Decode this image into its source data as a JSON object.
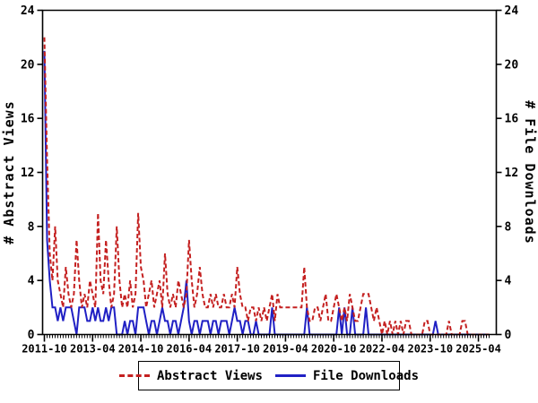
{
  "colors": {
    "abstract_views": "#c42020",
    "file_downloads": "#2020c4",
    "axis": "#000000",
    "background": "#ffffff"
  },
  "chart_data": {
    "type": "line",
    "title": "",
    "start_month": "2011-10",
    "x_tick_labels": [
      "2011-10",
      "2013-04",
      "2014-10",
      "2016-04",
      "2017-10",
      "2019-04",
      "2020-10",
      "2022-04",
      "2023-10",
      "2025-04"
    ],
    "x_tick_month_indices": [
      0,
      18,
      36,
      54,
      72,
      90,
      108,
      126,
      144,
      162
    ],
    "ylabel_left": "# Abstract Views",
    "ylabel_right": "# File Downloads",
    "y_ticks": [
      0,
      4,
      8,
      12,
      16,
      20,
      24
    ],
    "ylim": [
      0,
      24
    ],
    "grid": "off",
    "legend_position": "bottom",
    "series": [
      {
        "name": "Abstract Views",
        "style": "dashed",
        "color": "#c42020",
        "values": [
          22,
          13,
          6,
          4,
          8,
          4,
          3,
          2,
          5,
          3,
          2,
          3,
          7,
          4,
          2,
          3,
          2,
          4,
          3,
          2,
          9,
          4,
          3,
          7,
          4,
          2,
          3,
          8,
          4,
          2,
          3,
          2,
          4,
          2,
          3,
          9,
          5,
          4,
          2,
          3,
          4,
          2,
          3,
          4,
          2,
          6,
          3,
          2,
          3,
          2,
          4,
          3,
          2,
          3,
          7,
          4,
          2,
          3,
          5,
          3,
          2,
          2,
          3,
          2,
          3,
          2,
          2,
          3,
          2,
          2,
          3,
          2,
          5,
          3,
          2,
          2,
          1,
          2,
          2,
          1,
          2,
          1,
          2,
          1,
          2,
          3,
          1,
          3,
          2,
          2,
          2,
          2,
          2,
          2,
          2,
          2,
          2,
          5,
          2,
          1,
          1,
          2,
          2,
          1,
          2,
          3,
          1,
          1,
          2,
          3,
          2,
          1,
          2,
          1,
          3,
          2,
          1,
          1,
          2,
          3,
          3,
          3,
          2,
          1,
          2,
          1,
          0,
          1,
          0,
          1,
          0,
          1,
          0,
          1,
          0,
          1,
          1,
          0,
          0,
          0,
          0,
          0,
          1,
          1,
          0,
          0,
          0,
          0,
          0,
          0,
          0,
          1,
          0,
          0,
          0,
          0,
          1,
          1,
          0,
          0,
          0,
          0,
          0,
          0,
          0,
          0,
          0
        ]
      },
      {
        "name": "File Downloads",
        "style": "solid",
        "color": "#2020c4",
        "values": [
          21,
          7,
          4,
          2,
          2,
          1,
          2,
          1,
          2,
          2,
          2,
          1,
          0,
          2,
          2,
          2,
          1,
          1,
          2,
          1,
          2,
          1,
          1,
          2,
          1,
          2,
          2,
          0,
          0,
          0,
          1,
          0,
          1,
          1,
          0,
          2,
          2,
          2,
          1,
          0,
          1,
          1,
          0,
          1,
          2,
          1,
          1,
          0,
          1,
          1,
          0,
          1,
          2,
          4,
          1,
          0,
          1,
          1,
          0,
          1,
          1,
          1,
          0,
          1,
          1,
          0,
          1,
          1,
          1,
          0,
          1,
          2,
          1,
          1,
          0,
          1,
          1,
          0,
          0,
          1,
          0,
          0,
          0,
          0,
          0,
          2,
          0,
          0,
          0,
          0,
          0,
          0,
          0,
          0,
          0,
          0,
          0,
          0,
          2,
          0,
          0,
          0,
          0,
          0,
          0,
          0,
          0,
          0,
          0,
          0,
          2,
          0,
          2,
          0,
          0,
          2,
          0,
          0,
          0,
          0,
          2,
          0,
          0,
          0,
          0,
          0,
          0,
          0,
          0,
          0,
          0,
          0,
          0,
          0,
          0,
          0,
          0,
          0,
          0,
          0,
          0,
          0,
          0,
          0,
          0,
          0,
          1,
          0,
          0,
          0,
          0,
          0,
          0,
          0,
          0,
          0,
          0,
          0,
          0,
          0,
          0,
          0,
          0,
          0,
          0,
          0,
          0
        ]
      }
    ]
  }
}
